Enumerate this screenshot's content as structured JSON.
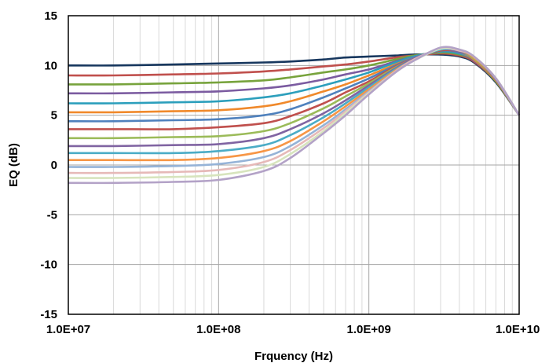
{
  "chart_data": {
    "type": "line",
    "title": "",
    "xlabel": "Frquency (Hz)",
    "ylabel": "EQ (dB)",
    "x_scale": "log",
    "xlim": [
      10000000,
      10000000000
    ],
    "ylim": [
      -15,
      15
    ],
    "x_ticks": [
      {
        "value": 10000000,
        "label": "1.0E+07"
      },
      {
        "value": 100000000,
        "label": "1.0E+08"
      },
      {
        "value": 1000000000,
        "label": "1.0E+09"
      },
      {
        "value": 10000000000,
        "label": "1.0E+10"
      }
    ],
    "y_ticks": [
      {
        "value": 15,
        "label": "15"
      },
      {
        "value": 10,
        "label": "10"
      },
      {
        "value": 5,
        "label": "5"
      },
      {
        "value": 0,
        "label": "0"
      },
      {
        "value": -5,
        "label": "-5"
      },
      {
        "value": -10,
        "label": "-10"
      },
      {
        "value": -15,
        "label": "-15"
      }
    ],
    "grid": true,
    "legend": "none",
    "x": [
      10000000,
      20000000,
      50000000,
      100000000,
      200000000,
      300000000,
      500000000,
      700000000,
      1000000000,
      1500000000,
      2000000000,
      3000000000,
      4000000000,
      5000000000,
      7000000000,
      10000000000
    ],
    "series": [
      {
        "color": "#17375e",
        "values": [
          10.0,
          10.0,
          10.1,
          10.2,
          10.3,
          10.4,
          10.6,
          10.8,
          10.9,
          11.0,
          11.1,
          11.1,
          10.9,
          10.3,
          8.3,
          5.0
        ]
      },
      {
        "color": "#c0504d",
        "values": [
          9.0,
          9.0,
          9.1,
          9.2,
          9.4,
          9.6,
          9.9,
          10.1,
          10.4,
          10.8,
          11.0,
          11.2,
          11.0,
          10.4,
          8.4,
          5.0
        ]
      },
      {
        "color": "#77a33c",
        "values": [
          8.1,
          8.1,
          8.2,
          8.3,
          8.5,
          8.8,
          9.3,
          9.6,
          10.0,
          10.6,
          11.0,
          11.3,
          11.1,
          10.5,
          8.4,
          5.0
        ]
      },
      {
        "color": "#7b5ba0",
        "values": [
          7.2,
          7.2,
          7.3,
          7.4,
          7.7,
          8.0,
          8.6,
          9.1,
          9.6,
          10.4,
          10.9,
          11.4,
          11.2,
          10.5,
          8.5,
          5.0
        ]
      },
      {
        "color": "#2c9fbc",
        "values": [
          6.2,
          6.2,
          6.3,
          6.4,
          6.8,
          7.2,
          8.0,
          8.6,
          9.3,
          10.3,
          10.9,
          11.4,
          11.2,
          10.6,
          8.5,
          5.0
        ]
      },
      {
        "color": "#f0892b",
        "values": [
          5.3,
          5.3,
          5.4,
          5.5,
          5.9,
          6.4,
          7.4,
          8.1,
          9.0,
          10.1,
          10.8,
          11.5,
          11.3,
          10.6,
          8.5,
          5.0
        ]
      },
      {
        "color": "#4f81bd",
        "values": [
          4.4,
          4.4,
          4.5,
          4.6,
          5.0,
          5.6,
          6.8,
          7.7,
          8.7,
          10.0,
          10.8,
          11.5,
          11.3,
          10.7,
          8.6,
          5.0
        ]
      },
      {
        "color": "#c0504d",
        "values": [
          3.6,
          3.6,
          3.6,
          3.8,
          4.2,
          4.9,
          6.2,
          7.3,
          8.4,
          9.9,
          10.7,
          11.5,
          11.4,
          10.7,
          8.6,
          5.0
        ]
      },
      {
        "color": "#9bbb59",
        "values": [
          2.7,
          2.7,
          2.8,
          2.9,
          3.4,
          4.2,
          5.7,
          6.9,
          8.2,
          9.8,
          10.7,
          11.6,
          11.4,
          10.7,
          8.6,
          5.0
        ]
      },
      {
        "color": "#8064a2",
        "values": [
          1.9,
          1.9,
          2.0,
          2.1,
          2.7,
          3.6,
          5.2,
          6.5,
          8.0,
          9.7,
          10.7,
          11.6,
          11.4,
          10.8,
          8.6,
          5.0
        ]
      },
      {
        "color": "#4bacc6",
        "values": [
          1.2,
          1.2,
          1.2,
          1.4,
          2.0,
          3.0,
          4.8,
          6.2,
          7.8,
          9.6,
          10.6,
          11.6,
          11.5,
          10.8,
          8.7,
          5.0
        ]
      },
      {
        "color": "#f79646",
        "values": [
          0.5,
          0.5,
          0.5,
          0.7,
          1.4,
          2.4,
          4.4,
          5.9,
          7.6,
          9.5,
          10.6,
          11.7,
          11.5,
          10.8,
          8.7,
          5.0
        ]
      },
      {
        "color": "#95b3d7",
        "values": [
          -0.2,
          -0.2,
          -0.1,
          0.1,
          0.8,
          1.9,
          4.0,
          5.6,
          7.4,
          9.4,
          10.6,
          11.7,
          11.5,
          10.9,
          8.7,
          5.0
        ]
      },
      {
        "color": "#e6b9b8",
        "values": [
          -0.8,
          -0.8,
          -0.7,
          -0.5,
          0.3,
          1.5,
          3.7,
          5.4,
          7.3,
          9.4,
          10.6,
          11.7,
          11.5,
          10.9,
          8.7,
          5.0
        ]
      },
      {
        "color": "#d7e4bd",
        "values": [
          -1.3,
          -1.3,
          -1.2,
          -1.0,
          -0.2,
          1.1,
          3.4,
          5.2,
          7.2,
          9.3,
          10.5,
          11.7,
          11.6,
          10.9,
          8.7,
          5.0
        ]
      },
      {
        "color": "#b3a2c7",
        "values": [
          -1.8,
          -1.8,
          -1.7,
          -1.5,
          -0.6,
          0.7,
          3.2,
          5.0,
          7.1,
          9.3,
          10.5,
          11.8,
          11.6,
          10.9,
          8.7,
          5.0
        ]
      }
    ]
  }
}
